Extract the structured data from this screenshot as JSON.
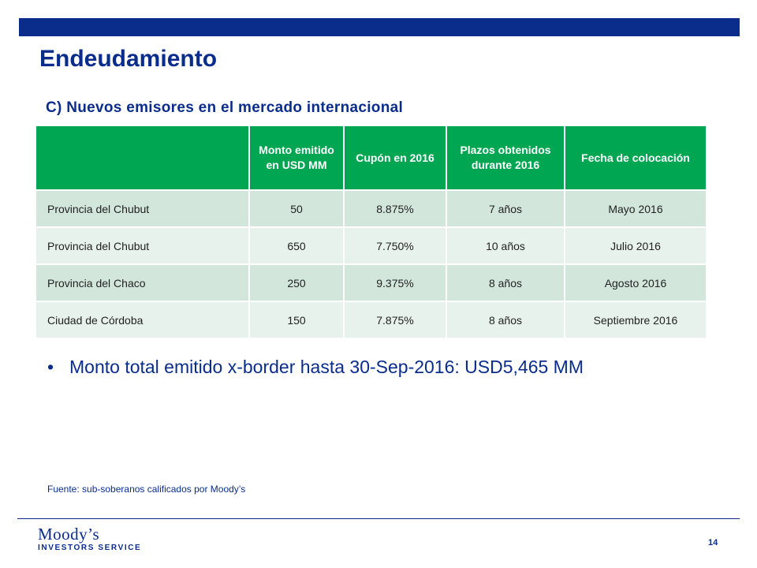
{
  "slide": {
    "title": "Endeudamiento",
    "subtitle": "C) Nuevos emisores en el mercado internacional",
    "page_number": "14",
    "brand_color": "#0a2d8c",
    "header_color": "#00a651"
  },
  "table": {
    "headers": [
      "",
      "Monto emitido en USD MM",
      "Cupón en 2016",
      "Plazos obtenidos durante 2016",
      "Fecha de colocación"
    ],
    "rows": [
      [
        "Provincia del Chubut",
        "50",
        "8.875%",
        "7 años",
        "Mayo 2016"
      ],
      [
        "Provincia del Chubut",
        "650",
        "7.750%",
        "10 años",
        "Julio 2016"
      ],
      [
        "Provincia del Chaco",
        "250",
        "9.375%",
        "8 años",
        "Agosto 2016"
      ],
      [
        "Ciudad de Córdoba",
        "150",
        "7.875%",
        "8 años",
        "Septiembre 2016"
      ]
    ]
  },
  "bullet": {
    "symbol": "•",
    "text": "Monto total emitido x-border hasta 30-Sep-2016: USD5,465 MM"
  },
  "source": "Fuente: sub-soberanos calificados por Moody’s",
  "logo": {
    "line1": "Moody’s",
    "line2": "INVESTORS SERVICE"
  }
}
